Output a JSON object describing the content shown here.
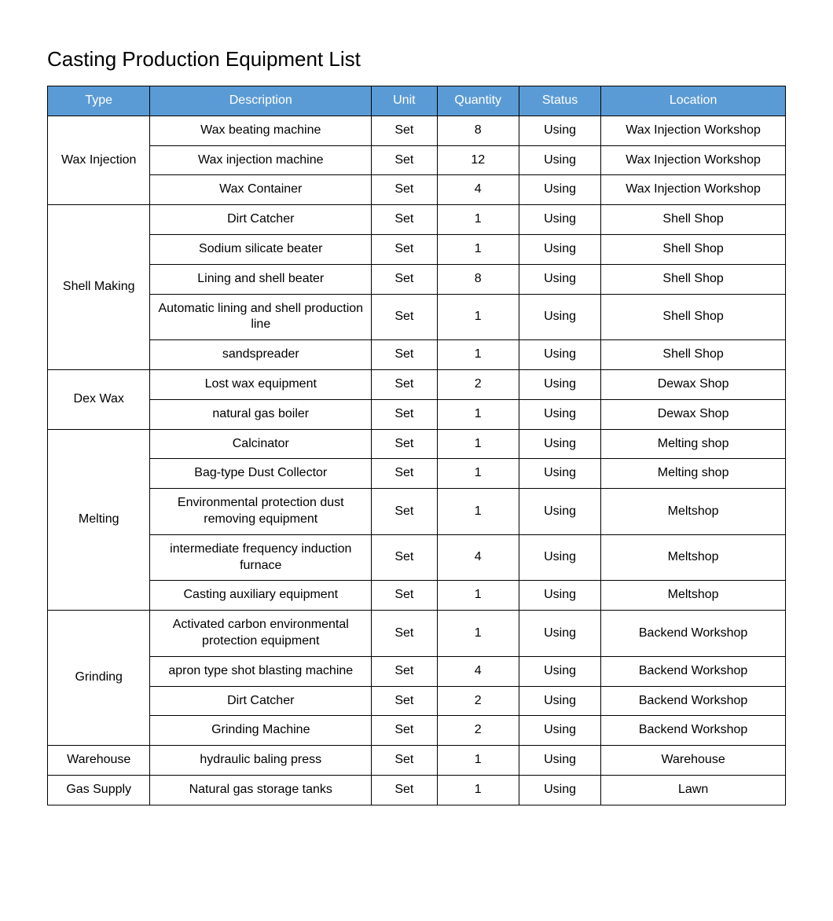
{
  "title": "Casting Production Equipment List",
  "table": {
    "header_bg": "#5b9bd5",
    "header_text_color": "#ffffff",
    "columns": [
      "Type",
      "Description",
      "Unit",
      "Quantity",
      "Status",
      "Location"
    ],
    "groups": [
      {
        "type": "Wax Injection",
        "rows": [
          {
            "description": "Wax beating machine",
            "unit": "Set",
            "quantity": "8",
            "status": "Using",
            "location": "Wax Injection Workshop"
          },
          {
            "description": "Wax injection machine",
            "unit": "Set",
            "quantity": "12",
            "status": "Using",
            "location": "Wax Injection Workshop"
          },
          {
            "description": "Wax Container",
            "unit": "Set",
            "quantity": "4",
            "status": "Using",
            "location": "Wax Injection Workshop"
          }
        ]
      },
      {
        "type": "Shell Making",
        "rows": [
          {
            "description": "Dirt Catcher",
            "unit": "Set",
            "quantity": "1",
            "status": "Using",
            "location": "Shell Shop"
          },
          {
            "description": "Sodium silicate beater",
            "unit": "Set",
            "quantity": "1",
            "status": "Using",
            "location": "Shell Shop"
          },
          {
            "description": "Lining and shell beater",
            "unit": "Set",
            "quantity": "8",
            "status": "Using",
            "location": "Shell Shop"
          },
          {
            "description": "Automatic lining and shell production line",
            "unit": "Set",
            "quantity": "1",
            "status": "Using",
            "location": "Shell Shop"
          },
          {
            "description": "sandspreader",
            "unit": "Set",
            "quantity": "1",
            "status": "Using",
            "location": "Shell Shop"
          }
        ]
      },
      {
        "type": "Dex Wax",
        "rows": [
          {
            "description": "Lost wax equipment",
            "unit": "Set",
            "quantity": "2",
            "status": "Using",
            "location": "Dewax Shop"
          },
          {
            "description": "natural gas boiler",
            "unit": "Set",
            "quantity": "1",
            "status": "Using",
            "location": "Dewax Shop"
          }
        ]
      },
      {
        "type": "Melting",
        "rows": [
          {
            "description": "Calcinator",
            "unit": "Set",
            "quantity": "1",
            "status": "Using",
            "location": "Melting shop"
          },
          {
            "description": "Bag-type Dust Collector",
            "unit": "Set",
            "quantity": "1",
            "status": "Using",
            "location": "Melting shop"
          },
          {
            "description": "Environmental protection dust removing equipment",
            "unit": "Set",
            "quantity": "1",
            "status": "Using",
            "location": "Meltshop"
          },
          {
            "description": "intermediate frequency induction furnace",
            "unit": "Set",
            "quantity": "4",
            "status": "Using",
            "location": "Meltshop"
          },
          {
            "description": "Casting auxiliary equipment",
            "unit": "Set",
            "quantity": "1",
            "status": "Using",
            "location": "Meltshop"
          }
        ]
      },
      {
        "type": "Grinding",
        "rows": [
          {
            "description": "Activated carbon environmental protection equipment",
            "unit": "Set",
            "quantity": "1",
            "status": "Using",
            "location": "Backend Workshop"
          },
          {
            "description": "apron type shot blasting machine",
            "unit": "Set",
            "quantity": "4",
            "status": "Using",
            "location": "Backend Workshop"
          },
          {
            "description": "Dirt Catcher",
            "unit": "Set",
            "quantity": "2",
            "status": "Using",
            "location": "Backend Workshop"
          },
          {
            "description": "Grinding Machine",
            "unit": "Set",
            "quantity": "2",
            "status": "Using",
            "location": "Backend Workshop"
          }
        ]
      },
      {
        "type": "Warehouse",
        "rows": [
          {
            "description": "hydraulic baling press",
            "unit": "Set",
            "quantity": "1",
            "status": "Using",
            "location": "Warehouse"
          }
        ]
      },
      {
        "type": "Gas Supply",
        "rows": [
          {
            "description": "Natural gas storage tanks",
            "unit": "Set",
            "quantity": "1",
            "status": "Using",
            "location": "Lawn"
          }
        ]
      }
    ]
  }
}
